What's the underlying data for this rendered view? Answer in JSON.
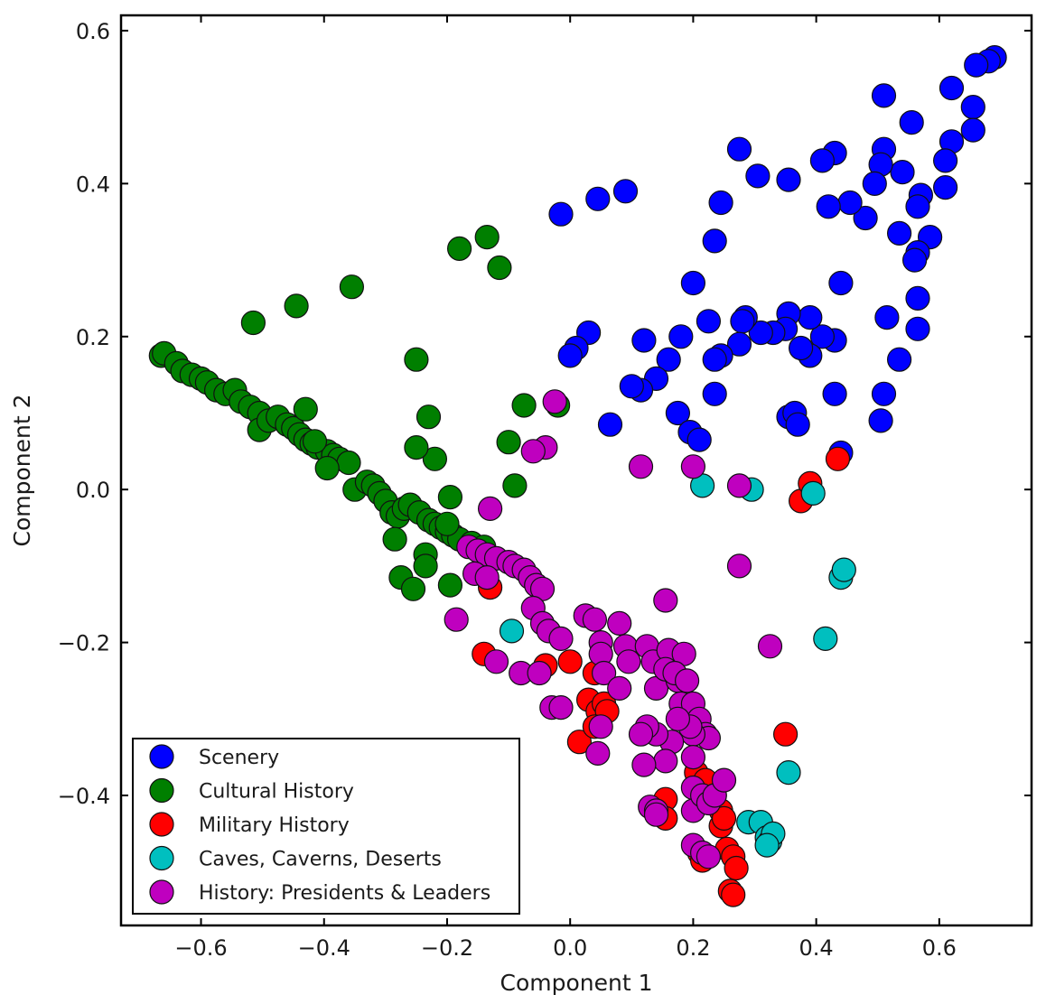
{
  "chart_data": {
    "type": "scatter",
    "title": "",
    "xlabel": "Component 1",
    "ylabel": "Component 2",
    "xlim": [
      -0.73,
      0.75
    ],
    "ylim": [
      -0.57,
      0.62
    ],
    "xticks": [
      -0.6,
      -0.4,
      -0.2,
      0.0,
      0.2,
      0.4,
      0.6
    ],
    "yticks": [
      -0.4,
      -0.2,
      0.0,
      0.2,
      0.4,
      0.6
    ],
    "xtick_labels": [
      "−0.6",
      "−0.4",
      "−0.2",
      "0.0",
      "0.2",
      "0.4",
      "0.6"
    ],
    "ytick_labels": [
      "−0.4",
      "−0.2",
      "0.0",
      "0.2",
      "0.4",
      "0.6"
    ],
    "grid": false,
    "legend_position": "bottom-left",
    "series": [
      {
        "name": "Scenery",
        "color": "#0000ff",
        "points": [
          [
            0.69,
            0.565
          ],
          [
            0.68,
            0.56
          ],
          [
            0.66,
            0.555
          ],
          [
            0.655,
            0.5
          ],
          [
            0.655,
            0.47
          ],
          [
            0.62,
            0.525
          ],
          [
            0.62,
            0.455
          ],
          [
            0.61,
            0.43
          ],
          [
            0.61,
            0.395
          ],
          [
            0.585,
            0.33
          ],
          [
            0.565,
            0.31
          ],
          [
            0.56,
            0.3
          ],
          [
            0.555,
            0.48
          ],
          [
            0.57,
            0.385
          ],
          [
            0.565,
            0.37
          ],
          [
            0.54,
            0.415
          ],
          [
            0.535,
            0.335
          ],
          [
            0.51,
            0.515
          ],
          [
            0.51,
            0.445
          ],
          [
            0.505,
            0.425
          ],
          [
            0.495,
            0.4
          ],
          [
            0.48,
            0.355
          ],
          [
            0.455,
            0.375
          ],
          [
            0.42,
            0.37
          ],
          [
            0.43,
            0.44
          ],
          [
            0.41,
            0.43
          ],
          [
            0.44,
            0.27
          ],
          [
            0.515,
            0.225
          ],
          [
            0.565,
            0.25
          ],
          [
            0.565,
            0.21
          ],
          [
            0.535,
            0.17
          ],
          [
            0.51,
            0.125
          ],
          [
            0.505,
            0.09
          ],
          [
            0.43,
            0.195
          ],
          [
            0.43,
            0.125
          ],
          [
            0.41,
            0.2
          ],
          [
            0.39,
            0.225
          ],
          [
            0.39,
            0.175
          ],
          [
            0.375,
            0.185
          ],
          [
            0.355,
            0.23
          ],
          [
            0.35,
            0.21
          ],
          [
            0.33,
            0.205
          ],
          [
            0.31,
            0.205
          ],
          [
            0.285,
            0.225
          ],
          [
            0.28,
            0.22
          ],
          [
            0.275,
            0.19
          ],
          [
            0.245,
            0.175
          ],
          [
            0.235,
            0.17
          ],
          [
            0.225,
            0.22
          ],
          [
            0.2,
            0.27
          ],
          [
            0.235,
            0.325
          ],
          [
            0.245,
            0.375
          ],
          [
            0.275,
            0.445
          ],
          [
            0.305,
            0.41
          ],
          [
            0.355,
            0.405
          ],
          [
            0.18,
            0.2
          ],
          [
            0.16,
            0.17
          ],
          [
            0.14,
            0.145
          ],
          [
            0.12,
            0.195
          ],
          [
            0.115,
            0.13
          ],
          [
            0.1,
            0.135
          ],
          [
            0.065,
            0.085
          ],
          [
            0.03,
            0.205
          ],
          [
            0.01,
            0.185
          ],
          [
            0.0,
            0.175
          ],
          [
            -0.015,
            0.36
          ],
          [
            0.045,
            0.38
          ],
          [
            0.09,
            0.39
          ],
          [
            0.175,
            0.1
          ],
          [
            0.195,
            0.075
          ],
          [
            0.21,
            0.065
          ],
          [
            0.235,
            0.125
          ],
          [
            0.355,
            0.095
          ],
          [
            0.365,
            0.1
          ],
          [
            0.37,
            0.085
          ],
          [
            0.44,
            0.048
          ]
        ]
      },
      {
        "name": "Cultural History",
        "color": "#007f00",
        "points": [
          [
            -0.665,
            0.175
          ],
          [
            -0.66,
            0.178
          ],
          [
            -0.64,
            0.165
          ],
          [
            -0.63,
            0.155
          ],
          [
            -0.615,
            0.15
          ],
          [
            -0.6,
            0.145
          ],
          [
            -0.59,
            0.14
          ],
          [
            -0.575,
            0.13
          ],
          [
            -0.56,
            0.125
          ],
          [
            -0.545,
            0.13
          ],
          [
            -0.535,
            0.115
          ],
          [
            -0.52,
            0.108
          ],
          [
            -0.505,
            0.1
          ],
          [
            -0.505,
            0.078
          ],
          [
            -0.49,
            0.09
          ],
          [
            -0.475,
            0.095
          ],
          [
            -0.46,
            0.085
          ],
          [
            -0.45,
            0.08
          ],
          [
            -0.44,
            0.072
          ],
          [
            -0.43,
            0.065
          ],
          [
            -0.42,
            0.06
          ],
          [
            -0.41,
            0.055
          ],
          [
            -0.395,
            0.05
          ],
          [
            -0.385,
            0.045
          ],
          [
            -0.375,
            0.04
          ],
          [
            -0.36,
            0.035
          ],
          [
            -0.35,
            0.0
          ],
          [
            -0.33,
            0.01
          ],
          [
            -0.32,
            0.005
          ],
          [
            -0.31,
            -0.005
          ],
          [
            -0.3,
            -0.015
          ],
          [
            -0.29,
            -0.03
          ],
          [
            -0.28,
            -0.035
          ],
          [
            -0.27,
            -0.025
          ],
          [
            -0.26,
            -0.02
          ],
          [
            -0.245,
            -0.03
          ],
          [
            -0.23,
            -0.04
          ],
          [
            -0.22,
            -0.045
          ],
          [
            -0.21,
            -0.05
          ],
          [
            -0.2,
            -0.055
          ],
          [
            -0.19,
            -0.06
          ],
          [
            -0.18,
            -0.065
          ],
          [
            -0.16,
            -0.07
          ],
          [
            -0.14,
            -0.075
          ],
          [
            -0.285,
            -0.065
          ],
          [
            -0.275,
            -0.115
          ],
          [
            -0.255,
            -0.13
          ],
          [
            -0.235,
            -0.085
          ],
          [
            -0.235,
            -0.1
          ],
          [
            -0.195,
            -0.125
          ],
          [
            -0.395,
            0.028
          ],
          [
            -0.43,
            0.105
          ],
          [
            -0.415,
            0.063
          ],
          [
            -0.195,
            -0.01
          ],
          [
            -0.2,
            -0.045
          ],
          [
            -0.22,
            0.04
          ],
          [
            -0.25,
            0.055
          ],
          [
            -0.25,
            0.17
          ],
          [
            -0.23,
            0.095
          ],
          [
            -0.09,
            0.005
          ],
          [
            -0.1,
            0.062
          ],
          [
            -0.075,
            0.11
          ],
          [
            -0.02,
            0.11
          ],
          [
            -0.115,
            0.29
          ],
          [
            -0.135,
            0.33
          ],
          [
            -0.18,
            0.315
          ],
          [
            -0.355,
            0.265
          ],
          [
            -0.445,
            0.24
          ],
          [
            -0.515,
            0.218
          ]
        ]
      },
      {
        "name": "Military History",
        "color": "#ff0000",
        "points": [
          [
            -0.13,
            -0.128
          ],
          [
            -0.14,
            -0.215
          ],
          [
            0.0,
            -0.225
          ],
          [
            0.03,
            -0.275
          ],
          [
            0.045,
            -0.29
          ],
          [
            0.055,
            -0.28
          ],
          [
            0.06,
            -0.29
          ],
          [
            0.04,
            -0.24
          ],
          [
            0.015,
            -0.33
          ],
          [
            0.04,
            -0.31
          ],
          [
            0.155,
            -0.405
          ],
          [
            0.155,
            -0.43
          ],
          [
            0.205,
            -0.37
          ],
          [
            0.21,
            -0.475
          ],
          [
            0.215,
            -0.485
          ],
          [
            0.22,
            -0.38
          ],
          [
            0.235,
            -0.4
          ],
          [
            0.245,
            -0.42
          ],
          [
            0.245,
            -0.44
          ],
          [
            0.25,
            -0.43
          ],
          [
            0.255,
            -0.47
          ],
          [
            0.265,
            -0.48
          ],
          [
            0.27,
            -0.495
          ],
          [
            0.26,
            -0.525
          ],
          [
            0.265,
            -0.53
          ],
          [
            0.35,
            -0.32
          ],
          [
            0.375,
            -0.015
          ],
          [
            0.39,
            0.008
          ],
          [
            0.435,
            0.04
          ],
          [
            -0.04,
            -0.23
          ]
        ]
      },
      {
        "name": "Caves, Caverns, Deserts",
        "color": "#00bfbf",
        "points": [
          [
            -0.095,
            -0.185
          ],
          [
            0.215,
            0.005
          ],
          [
            0.295,
            0.0
          ],
          [
            0.395,
            -0.005
          ],
          [
            0.44,
            -0.115
          ],
          [
            0.445,
            -0.105
          ],
          [
            0.415,
            -0.195
          ],
          [
            0.355,
            -0.37
          ],
          [
            0.29,
            -0.435
          ],
          [
            0.31,
            -0.435
          ],
          [
            0.32,
            -0.455
          ],
          [
            0.325,
            -0.46
          ],
          [
            0.33,
            -0.45
          ],
          [
            0.32,
            -0.465
          ]
        ]
      },
      {
        "name": "History: Presidents & Leaders",
        "color": "#bf00bf",
        "points": [
          [
            -0.025,
            0.115
          ],
          [
            -0.04,
            0.055
          ],
          [
            -0.06,
            0.05
          ],
          [
            -0.13,
            -0.025
          ],
          [
            -0.165,
            -0.075
          ],
          [
            -0.15,
            -0.08
          ],
          [
            -0.135,
            -0.085
          ],
          [
            -0.12,
            -0.09
          ],
          [
            -0.1,
            -0.095
          ],
          [
            -0.09,
            -0.1
          ],
          [
            -0.075,
            -0.105
          ],
          [
            -0.065,
            -0.115
          ],
          [
            -0.055,
            -0.125
          ],
          [
            -0.045,
            -0.13
          ],
          [
            -0.155,
            -0.11
          ],
          [
            -0.135,
            -0.115
          ],
          [
            -0.185,
            -0.17
          ],
          [
            -0.12,
            -0.225
          ],
          [
            -0.08,
            -0.24
          ],
          [
            -0.05,
            -0.24
          ],
          [
            -0.06,
            -0.155
          ],
          [
            -0.045,
            -0.175
          ],
          [
            -0.035,
            -0.185
          ],
          [
            -0.015,
            -0.195
          ],
          [
            0.025,
            -0.165
          ],
          [
            0.04,
            -0.17
          ],
          [
            0.05,
            -0.2
          ],
          [
            0.05,
            -0.215
          ],
          [
            0.055,
            -0.24
          ],
          [
            0.05,
            -0.31
          ],
          [
            0.045,
            -0.345
          ],
          [
            0.08,
            -0.175
          ],
          [
            0.09,
            -0.205
          ],
          [
            0.095,
            -0.225
          ],
          [
            0.08,
            -0.26
          ],
          [
            0.125,
            -0.205
          ],
          [
            0.135,
            -0.225
          ],
          [
            0.14,
            -0.26
          ],
          [
            0.16,
            -0.21
          ],
          [
            0.155,
            -0.235
          ],
          [
            0.175,
            -0.25
          ],
          [
            0.18,
            -0.28
          ],
          [
            0.185,
            -0.215
          ],
          [
            0.17,
            -0.24
          ],
          [
            0.19,
            -0.25
          ],
          [
            0.2,
            -0.28
          ],
          [
            0.21,
            -0.3
          ],
          [
            0.22,
            -0.32
          ],
          [
            0.225,
            -0.325
          ],
          [
            0.2,
            -0.32
          ],
          [
            0.195,
            -0.31
          ],
          [
            0.175,
            -0.3
          ],
          [
            0.165,
            -0.33
          ],
          [
            0.155,
            -0.355
          ],
          [
            0.14,
            -0.32
          ],
          [
            0.125,
            -0.31
          ],
          [
            0.115,
            -0.32
          ],
          [
            0.12,
            -0.36
          ],
          [
            0.13,
            -0.415
          ],
          [
            0.14,
            -0.42
          ],
          [
            0.14,
            -0.425
          ],
          [
            0.2,
            -0.39
          ],
          [
            0.2,
            -0.42
          ],
          [
            0.215,
            -0.4
          ],
          [
            0.225,
            -0.41
          ],
          [
            0.235,
            -0.4
          ],
          [
            0.25,
            -0.38
          ],
          [
            0.2,
            -0.465
          ],
          [
            0.215,
            -0.475
          ],
          [
            0.225,
            -0.48
          ],
          [
            0.2,
            -0.35
          ],
          [
            -0.03,
            -0.285
          ],
          [
            -0.015,
            -0.285
          ],
          [
            0.155,
            -0.145
          ],
          [
            0.275,
            -0.1
          ],
          [
            0.325,
            -0.205
          ],
          [
            0.115,
            0.03
          ],
          [
            0.2,
            0.03
          ],
          [
            0.275,
            0.005
          ]
        ]
      }
    ]
  }
}
